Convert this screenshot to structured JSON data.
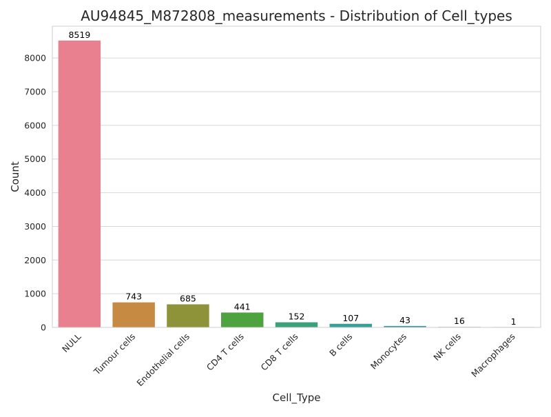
{
  "chart_data": {
    "type": "bar",
    "title": "AU94845_M872808_measurements - Distribution of Cell_types",
    "xlabel": "Cell_Type",
    "ylabel": "Count",
    "categories": [
      "NULL",
      "Tumour cells",
      "Endothelial cells",
      "CD4 T cells",
      "CD8 T cells",
      "B cells",
      "Monocytes",
      "NK cells",
      "Macrophages"
    ],
    "values": [
      8519,
      743,
      685,
      441,
      152,
      107,
      43,
      16,
      1
    ],
    "data_labels": [
      "8519",
      "743",
      "685",
      "441",
      "152",
      "107",
      "43",
      "16",
      "1"
    ],
    "colors": [
      "#e8808f",
      "#c68a42",
      "#8e933a",
      "#4ea23f",
      "#3aa27a",
      "#3a9f95",
      "#3d9ba9",
      "#88a2d6",
      "#d07fd0"
    ],
    "yticks": [
      0,
      1000,
      2000,
      3000,
      4000,
      5000,
      6000,
      7000,
      8000
    ],
    "ylim": [
      0,
      8945
    ],
    "grid": true,
    "xtick_rotation": 45
  }
}
